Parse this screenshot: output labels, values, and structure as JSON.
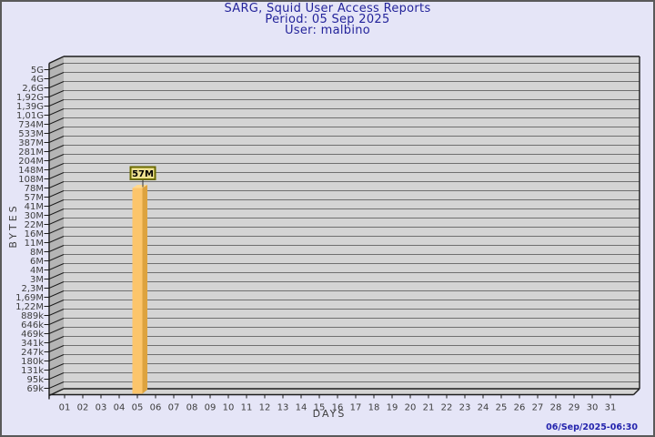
{
  "header": {
    "title": "SARG, Squid User Access Reports",
    "period": "Period: 05 Sep 2025",
    "user": "User: malbino"
  },
  "footer": {
    "generated": "06/Sep/2025-06:30"
  },
  "chart_data": {
    "type": "bar",
    "title": "SARG, Squid User Access Reports",
    "subtitle": [
      "Period: 05 Sep 2025",
      "User: malbino"
    ],
    "xlabel": "DAYS",
    "ylabel": "BYTES",
    "y_scale": "log",
    "ylim": [
      "69k",
      "5G"
    ],
    "grid": true,
    "x_ticks": [
      "01",
      "02",
      "03",
      "04",
      "05",
      "06",
      "07",
      "08",
      "09",
      "10",
      "11",
      "12",
      "13",
      "14",
      "15",
      "16",
      "17",
      "18",
      "19",
      "20",
      "21",
      "22",
      "23",
      "24",
      "25",
      "26",
      "27",
      "28",
      "29",
      "30",
      "31"
    ],
    "y_ticks": [
      "5G",
      "4G",
      "2,6G",
      "1,92G",
      "1,39G",
      "1,01G",
      "734M",
      "533M",
      "387M",
      "281M",
      "204M",
      "148M",
      "108M",
      "78M",
      "57M",
      "41M",
      "30M",
      "22M",
      "16M",
      "11M",
      "8M",
      "6M",
      "4M",
      "3M",
      "2,3M",
      "1,69M",
      "1,22M",
      "889k",
      "646k",
      "469k",
      "341k",
      "247k",
      "180k",
      "131k",
      "95k",
      "69k"
    ],
    "bars": [
      {
        "day": "05",
        "label": "57M",
        "value": "57M",
        "value_tick_index": 14
      }
    ],
    "colors": {
      "page_bg": "#e5e5f7",
      "plot_bg": "#d4d4d4",
      "wall_bg": "#b5b5b5",
      "grid_line": "#6f6f6f",
      "axis_line": "#1c1c1c",
      "tick_text": "#3d3d3d",
      "title_text": "#23239a",
      "timestamp_text": "#2323ad",
      "bar_face": "#fcc56b",
      "bar_side": "#dda33f",
      "bar_top": "#ffd98f",
      "bar_label_bg": "#efe291",
      "bar_label_border": "#6a6a00",
      "bar_label_text": "#000000"
    }
  }
}
